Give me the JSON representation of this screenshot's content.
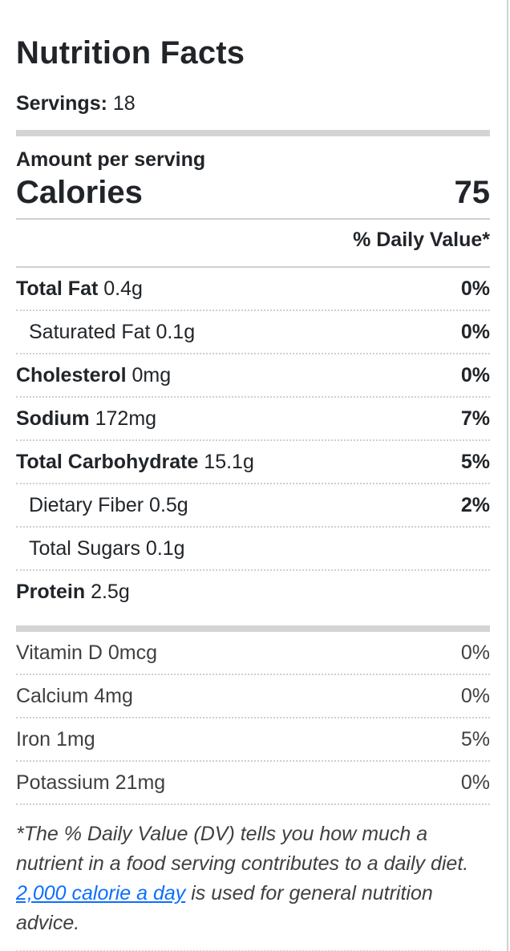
{
  "label": {
    "title": "Nutrition Facts",
    "servings_label": "Servings:",
    "servings_value": "18",
    "amount_per_serving": "Amount per serving",
    "calories_label": "Calories",
    "calories_value": "75",
    "daily_value_header": "% Daily Value*",
    "nutrients": [
      {
        "name": "Total Fat",
        "amount": "0.4g",
        "dv": "0%",
        "indent": false
      },
      {
        "name": "Saturated Fat",
        "amount": "0.1g",
        "dv": "0%",
        "indent": true
      },
      {
        "name": "Cholesterol",
        "amount": "0mg",
        "dv": "0%",
        "indent": false
      },
      {
        "name": "Sodium",
        "amount": "172mg",
        "dv": "7%",
        "indent": false
      },
      {
        "name": "Total Carbohydrate",
        "amount": "15.1g",
        "dv": "5%",
        "indent": false
      },
      {
        "name": "Dietary Fiber",
        "amount": "0.5g",
        "dv": "2%",
        "indent": true
      },
      {
        "name": "Total Sugars",
        "amount": "0.1g",
        "dv": "",
        "indent": true
      },
      {
        "name": "Protein",
        "amount": "2.5g",
        "dv": "",
        "indent": false
      }
    ],
    "vitamins": [
      {
        "name": "Vitamin D",
        "amount": "0mcg",
        "dv": "0%"
      },
      {
        "name": "Calcium",
        "amount": "4mg",
        "dv": "0%"
      },
      {
        "name": "Iron",
        "amount": "1mg",
        "dv": "5%"
      },
      {
        "name": "Potassium",
        "amount": "21mg",
        "dv": "0%"
      }
    ],
    "footnote": {
      "before_link": "*The % Daily Value (DV) tells you how much a nutrient in a food serving contributes to a daily diet. ",
      "link_text": "2,000 calorie a day",
      "after_link": " is used for general nutrition advice."
    },
    "colors": {
      "text": "#212529",
      "muted_text": "#404040",
      "divider": "#cfcfcf",
      "thick_bar": "#d4d4d4",
      "link": "#0d6efd"
    }
  }
}
